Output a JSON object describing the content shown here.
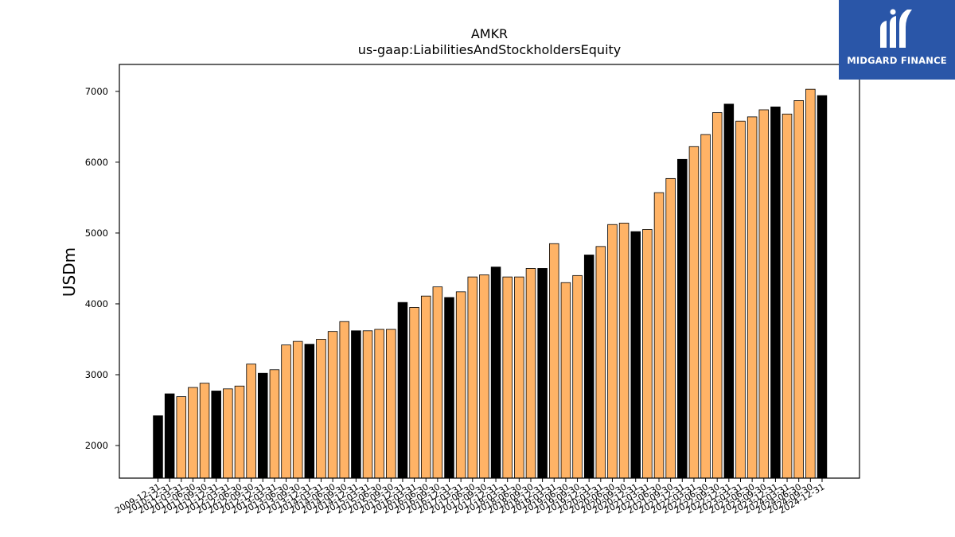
{
  "brand": {
    "name": "MIDGARD FINANCE",
    "bg_color": "#2a56a8",
    "icon": "midgard-logo-icon"
  },
  "chart_data": {
    "type": "bar",
    "title": "AMKR",
    "subtitle": "us-gaap:LiabilitiesAndStockholdersEquity",
    "ylabel": "USDm",
    "xlabel": "",
    "ylim": [
      1540,
      7380
    ],
    "yticks": [
      2000,
      3000,
      4000,
      5000,
      6000,
      7000
    ],
    "grid": false,
    "colors": {
      "quarterly": "#ffb366",
      "annual": "#000000",
      "edge": "#000000"
    },
    "categories": [
      "2009-12-31",
      "2010-12-31",
      "2011-03-31",
      "2011-06-30",
      "2011-09-30",
      "2011-12-31",
      "2012-03-31",
      "2012-06-30",
      "2012-09-30",
      "2012-12-31",
      "2013-03-31",
      "2013-06-30",
      "2013-09-30",
      "2013-12-31",
      "2014-03-31",
      "2014-06-30",
      "2014-09-30",
      "2014-12-31",
      "2015-03-31",
      "2015-06-30",
      "2015-09-30",
      "2015-12-31",
      "2016-03-31",
      "2016-06-30",
      "2016-09-30",
      "2016-12-31",
      "2017-03-31",
      "2017-06-30",
      "2017-09-30",
      "2017-12-31",
      "2018-03-31",
      "2018-06-30",
      "2018-09-30",
      "2018-12-31",
      "2019-03-31",
      "2019-06-30",
      "2019-09-30",
      "2019-12-31",
      "2020-03-31",
      "2020-06-30",
      "2020-09-30",
      "2020-12-31",
      "2021-03-31",
      "2021-06-30",
      "2021-09-30",
      "2021-12-31",
      "2022-03-31",
      "2022-06-30",
      "2022-09-30",
      "2022-12-31",
      "2023-03-31",
      "2023-06-30",
      "2023-09-30",
      "2023-12-31",
      "2024-03-31",
      "2024-06-30",
      "2024-09-30",
      "2024-12-31"
    ],
    "values": [
      2420,
      2730,
      2690,
      2820,
      2880,
      2770,
      2800,
      2840,
      3150,
      3020,
      3070,
      3420,
      3470,
      3430,
      3500,
      3610,
      3750,
      3620,
      3620,
      3640,
      3640,
      4020,
      3950,
      4110,
      4240,
      4090,
      4170,
      4380,
      4410,
      4520,
      4380,
      4380,
      4500,
      4500,
      4850,
      4300,
      4400,
      4690,
      4810,
      5120,
      5140,
      5020,
      5050,
      5570,
      5770,
      6040,
      6220,
      6390,
      6700,
      6820,
      6580,
      6640,
      6740,
      6780,
      6680,
      6870,
      7030,
      6940
    ],
    "annual": [
      true,
      true,
      false,
      false,
      false,
      true,
      false,
      false,
      false,
      true,
      false,
      false,
      false,
      true,
      false,
      false,
      false,
      true,
      false,
      false,
      false,
      true,
      false,
      false,
      false,
      true,
      false,
      false,
      false,
      true,
      false,
      false,
      false,
      true,
      false,
      false,
      false,
      true,
      false,
      false,
      false,
      true,
      false,
      false,
      false,
      true,
      false,
      false,
      false,
      true,
      false,
      false,
      false,
      true,
      false,
      false,
      false,
      true
    ]
  }
}
